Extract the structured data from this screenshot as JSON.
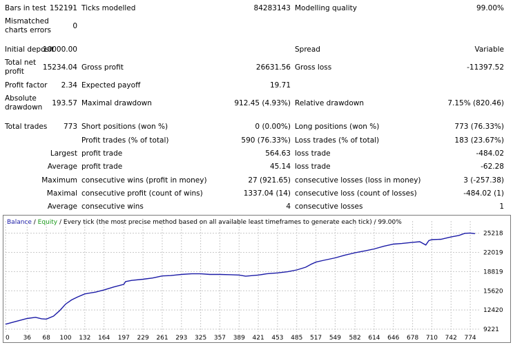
{
  "report": {
    "bars_label": "Bars in test",
    "bars_value": "152191",
    "ticks_label": "Ticks modelled",
    "ticks_value": "84283143",
    "quality_label": "Modelling quality",
    "quality_value": "99.00%",
    "mismatch_label": "Mismatched charts errors",
    "mismatch_value": "0",
    "deposit_label": "Initial deposit",
    "deposit_value": "10000.00",
    "spread_label": "Spread",
    "spread_value": "Variable",
    "netprofit_label": "Total net profit",
    "netprofit_value": "15234.04",
    "grossprofit_label": "Gross profit",
    "grossprofit_value": "26631.56",
    "grossloss_label": "Gross loss",
    "grossloss_value": "-11397.52",
    "pf_label": "Profit factor",
    "pf_value": "2.34",
    "payoff_label": "Expected payoff",
    "payoff_value": "19.71",
    "absdd_label": "Absolute drawdown",
    "absdd_value": "193.57",
    "maxdd_label": "Maximal drawdown",
    "maxdd_value": "912.45 (4.93%)",
    "reldd_label": "Relative drawdown",
    "reldd_value": "7.15% (820.46)",
    "trades_label": "Total trades",
    "trades_value": "773",
    "short_label": "Short positions (won %)",
    "short_value": "0 (0.00%)",
    "long_label": "Long positions (won %)",
    "long_value": "773 (76.33%)",
    "ptrades_label": "Profit trades (% of total)",
    "ptrades_value": "590 (76.33%)",
    "ltrades_label": "Loss trades (% of total)",
    "ltrades_value": "183 (23.67%)",
    "largest_label": "Largest",
    "largest_profit_label": "profit trade",
    "largest_profit_value": "564.63",
    "largest_loss_label": "loss trade",
    "largest_loss_value": "-484.02",
    "average_label": "Average",
    "average_profit_label": "profit trade",
    "average_profit_value": "45.14",
    "average_loss_label": "loss trade",
    "average_loss_value": "-62.28",
    "maximum_label": "Maximum",
    "max_wins_label": "consecutive wins (profit in money)",
    "max_wins_value": "27 (921.65)",
    "max_losses_label": "consecutive losses (loss in money)",
    "max_losses_value": "3 (-257.38)",
    "maximal_label": "Maximal",
    "maximal_profit_label": "consecutive profit (count of wins)",
    "maximal_profit_value": "1337.04 (14)",
    "maximal_loss_label": "consecutive loss (count of losses)",
    "maximal_loss_value": "-484.02 (1)",
    "avgcons_label": "Average",
    "avgcons_wins_label": "consecutive wins",
    "avgcons_wins_value": "4",
    "avgcons_losses_label": "consecutive losses",
    "avgcons_losses_value": "1"
  },
  "graph": {
    "legend_balance": "Balance",
    "legend_sep1": " / ",
    "legend_equity": "Equity",
    "legend_rest": " / Every tick (the most precise method based on all available least timeframes to generate each tick) / 99.00%"
  },
  "colors": {
    "balance": "#1a1aa6",
    "equity": "#1a9a1a",
    "grid": "#c8c8c8"
  },
  "chart_data": {
    "type": "line",
    "title": "",
    "xlabel": "",
    "ylabel": "",
    "xlim": [
      0,
      790
    ],
    "ylim": [
      9221,
      26100
    ],
    "x_ticks": [
      0,
      36,
      68,
      100,
      132,
      164,
      197,
      229,
      261,
      293,
      325,
      357,
      389,
      421,
      453,
      485,
      517,
      549,
      582,
      614,
      646,
      678,
      710,
      742,
      774
    ],
    "y_ticks": [
      9221,
      12420,
      15620,
      18819,
      22019,
      25218
    ],
    "series": [
      {
        "name": "Balance",
        "x": [
          0,
          15,
          36,
          50,
          60,
          68,
          80,
          90,
          100,
          110,
          120,
          132,
          150,
          164,
          180,
          197,
          200,
          210,
          229,
          245,
          261,
          275,
          293,
          310,
          325,
          340,
          357,
          375,
          389,
          400,
          421,
          435,
          453,
          470,
          485,
          500,
          510,
          517,
          530,
          549,
          565,
          582,
          600,
          614,
          630,
          646,
          660,
          678,
          690,
          700,
          705,
          710,
          725,
          742,
          755,
          765,
          774,
          782
        ],
        "y": [
          10050,
          10450,
          11000,
          11200,
          10950,
          10900,
          11400,
          12300,
          13400,
          14100,
          14600,
          15100,
          15400,
          15750,
          16250,
          16700,
          17150,
          17350,
          17550,
          17750,
          18100,
          18150,
          18350,
          18450,
          18450,
          18350,
          18350,
          18300,
          18250,
          18050,
          18250,
          18450,
          18600,
          18800,
          19100,
          19550,
          20100,
          20400,
          20700,
          21100,
          21550,
          21950,
          22300,
          22600,
          23050,
          23400,
          23500,
          23700,
          23800,
          23250,
          24000,
          24150,
          24200,
          24600,
          24850,
          25200,
          25250,
          25150
        ]
      }
    ]
  }
}
